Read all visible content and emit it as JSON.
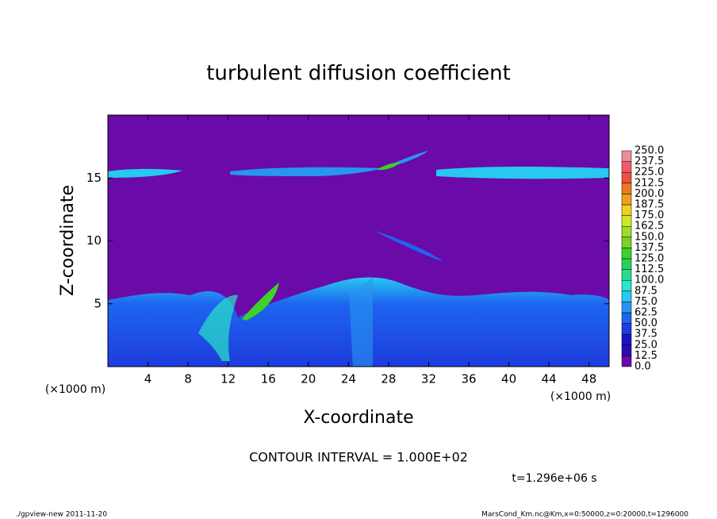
{
  "chart_data": {
    "type": "contour",
    "title": "turbulent diffusion coefficient",
    "xlabel": "X-coordinate",
    "ylabel": "Z-coordinate",
    "x_unit": "(×1000 m)",
    "xlim": [
      0,
      50
    ],
    "xticks": [
      4,
      8,
      12,
      16,
      20,
      24,
      28,
      32,
      36,
      40,
      44,
      48
    ],
    "ylim": [
      0,
      20
    ],
    "yticks": [
      5,
      10,
      15
    ],
    "levels": [
      {
        "value": 0,
        "label": "0.0"
      },
      {
        "value": 12.5,
        "label": "12.5"
      },
      {
        "value": 25,
        "label": "25.0"
      },
      {
        "value": 37.5,
        "label": "37.5"
      },
      {
        "value": 50,
        "label": "50.0"
      },
      {
        "value": 62.5,
        "label": "62.5"
      },
      {
        "value": 75,
        "label": "75.0"
      },
      {
        "value": 87.5,
        "label": "87.5"
      },
      {
        "value": 100,
        "label": "100.0"
      },
      {
        "value": 112.5,
        "label": "112.5"
      },
      {
        "value": 125,
        "label": "125.0"
      },
      {
        "value": 137.5,
        "label": "137.5"
      },
      {
        "value": 150,
        "label": "150.0"
      },
      {
        "value": 162.5,
        "label": "162.5"
      },
      {
        "value": 175,
        "label": "175.0"
      },
      {
        "value": 187.5,
        "label": "187.5"
      },
      {
        "value": 200,
        "label": "200.0"
      },
      {
        "value": 212.5,
        "label": "212.5"
      },
      {
        "value": 225,
        "label": "225.0"
      },
      {
        "value": 237.5,
        "label": "237.5"
      },
      {
        "value": 250,
        "label": "250.0"
      }
    ],
    "colors": [
      "#6a0aa8",
      "#2a0ab4",
      "#1414c8",
      "#1e3cdc",
      "#1e64f0",
      "#2896f0",
      "#28c8f0",
      "#28e6c8",
      "#28dc8c",
      "#28d25a",
      "#3cd228",
      "#78d228",
      "#a0dc28",
      "#d2e628",
      "#f0d21e",
      "#f0a01e",
      "#f0781e",
      "#f0503c",
      "#f05a6e",
      "#f08c9a"
    ],
    "contour_interval": "CONTOUR INTERVAL = 1.000E+02",
    "time": "t=1.296e+06 s",
    "footer_left": "./gpview-new  2011-11-20",
    "footer_right": "MarsCond_Km.nc@Km,x=0:50000,z=0:20000,t=1296000"
  }
}
